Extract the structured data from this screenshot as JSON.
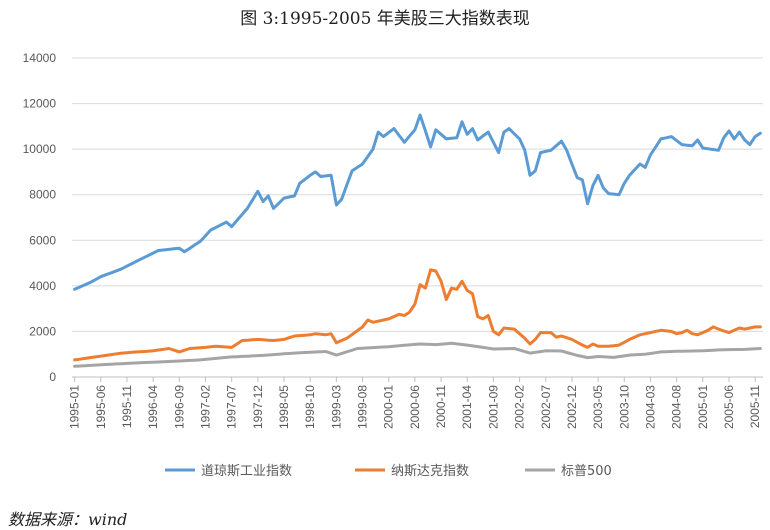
{
  "chart_data": {
    "type": "line",
    "title": "图 3:1995-2005 年美股三大指数表现",
    "xlabel": "",
    "ylabel": "",
    "ylim": [
      0,
      14000
    ],
    "yticks": [
      0,
      2000,
      4000,
      6000,
      8000,
      10000,
      12000,
      14000
    ],
    "ytick_labels": [
      "0",
      "2000",
      "4000",
      "6000",
      "8000",
      "10000",
      "12000",
      "14000"
    ],
    "grid": true,
    "legend_position": "bottom",
    "x_start": "1995-01",
    "x_end": "2005-12",
    "num_points": 132,
    "tick_labels": [
      "1995-01",
      "1995-06",
      "1995-11",
      "1996-04",
      "1996-09",
      "1997-02",
      "1997-07",
      "1997-12",
      "1998-05",
      "1998-10",
      "1999-03",
      "1999-08",
      "2000-01",
      "2000-06",
      "2000-11",
      "2001-04",
      "2001-09",
      "2002-02",
      "2002-07",
      "2002-12",
      "2003-05",
      "2003-10",
      "2004-03",
      "2004-08",
      "2005-01",
      "2005-06",
      "2005-11"
    ],
    "series": [
      {
        "name": "道琼斯工业指数",
        "color": "#5B9BD5",
        "anchors": [
          [
            0,
            3850
          ],
          [
            3,
            4150
          ],
          [
            5,
            4400
          ],
          [
            9,
            4750
          ],
          [
            12,
            5100
          ],
          [
            16,
            5550
          ],
          [
            20,
            5650
          ],
          [
            21,
            5500
          ],
          [
            24,
            5950
          ],
          [
            26,
            6450
          ],
          [
            29,
            6800
          ],
          [
            30,
            6600
          ],
          [
            33,
            7400
          ],
          [
            35,
            8150
          ],
          [
            36,
            7700
          ],
          [
            37,
            7950
          ],
          [
            38,
            7400
          ],
          [
            40,
            7850
          ],
          [
            42,
            7950
          ],
          [
            43,
            8500
          ],
          [
            45,
            8850
          ],
          [
            46,
            9000
          ],
          [
            47,
            8800
          ],
          [
            49,
            8850
          ],
          [
            50,
            7550
          ],
          [
            51,
            7800
          ],
          [
            53,
            9050
          ],
          [
            55,
            9350
          ],
          [
            57,
            10000
          ],
          [
            58,
            10750
          ],
          [
            59,
            10550
          ],
          [
            61,
            10900
          ],
          [
            62,
            10600
          ],
          [
            63,
            10300
          ],
          [
            65,
            10850
          ],
          [
            66,
            11500
          ],
          [
            68,
            10100
          ],
          [
            69,
            10850
          ],
          [
            71,
            10450
          ],
          [
            73,
            10500
          ],
          [
            74,
            11200
          ],
          [
            75,
            10650
          ],
          [
            76,
            10900
          ],
          [
            77,
            10400
          ],
          [
            79,
            10750
          ],
          [
            81,
            9850
          ],
          [
            82,
            10750
          ],
          [
            83,
            10900
          ],
          [
            85,
            10450
          ],
          [
            86,
            9950
          ],
          [
            87,
            8850
          ],
          [
            88,
            9050
          ],
          [
            89,
            9850
          ],
          [
            91,
            9950
          ],
          [
            93,
            10350
          ],
          [
            94,
            9950
          ],
          [
            96,
            8750
          ],
          [
            97,
            8650
          ],
          [
            98,
            7600
          ],
          [
            99,
            8400
          ],
          [
            100,
            8850
          ],
          [
            101,
            8300
          ],
          [
            102,
            8050
          ],
          [
            104,
            8000
          ],
          [
            105,
            8500
          ],
          [
            106,
            8850
          ],
          [
            108,
            9350
          ],
          [
            109,
            9200
          ],
          [
            110,
            9750
          ],
          [
            112,
            10450
          ],
          [
            114,
            10550
          ],
          [
            116,
            10200
          ],
          [
            118,
            10150
          ],
          [
            119,
            10400
          ],
          [
            120,
            10050
          ],
          [
            123,
            9950
          ],
          [
            124,
            10500
          ],
          [
            125,
            10800
          ],
          [
            126,
            10450
          ],
          [
            127,
            10750
          ],
          [
            128,
            10400
          ],
          [
            129,
            10200
          ],
          [
            130,
            10550
          ],
          [
            131,
            10700
          ]
        ]
      },
      {
        "name": "纳斯达克指数",
        "color": "#ED7D31",
        "anchors": [
          [
            0,
            750
          ],
          [
            3,
            850
          ],
          [
            6,
            950
          ],
          [
            9,
            1050
          ],
          [
            12,
            1100
          ],
          [
            15,
            1150
          ],
          [
            18,
            1250
          ],
          [
            20,
            1100
          ],
          [
            22,
            1250
          ],
          [
            25,
            1300
          ],
          [
            27,
            1350
          ],
          [
            30,
            1300
          ],
          [
            31,
            1450
          ],
          [
            32,
            1600
          ],
          [
            35,
            1650
          ],
          [
            38,
            1600
          ],
          [
            40,
            1650
          ],
          [
            42,
            1800
          ],
          [
            45,
            1850
          ],
          [
            46,
            1900
          ],
          [
            48,
            1850
          ],
          [
            49,
            1900
          ],
          [
            50,
            1500
          ],
          [
            52,
            1700
          ],
          [
            55,
            2200
          ],
          [
            56,
            2500
          ],
          [
            57,
            2400
          ],
          [
            60,
            2550
          ],
          [
            62,
            2750
          ],
          [
            63,
            2700
          ],
          [
            64,
            2850
          ],
          [
            65,
            3200
          ],
          [
            66,
            4050
          ],
          [
            67,
            3900
          ],
          [
            68,
            4700
          ],
          [
            69,
            4650
          ],
          [
            70,
            4200
          ],
          [
            71,
            3400
          ],
          [
            72,
            3900
          ],
          [
            73,
            3850
          ],
          [
            74,
            4200
          ],
          [
            75,
            3800
          ],
          [
            76,
            3650
          ],
          [
            77,
            2650
          ],
          [
            78,
            2550
          ],
          [
            79,
            2700
          ],
          [
            80,
            2000
          ],
          [
            81,
            1850
          ],
          [
            82,
            2150
          ],
          [
            84,
            2100
          ],
          [
            86,
            1700
          ],
          [
            87,
            1450
          ],
          [
            88,
            1650
          ],
          [
            89,
            1950
          ],
          [
            91,
            1950
          ],
          [
            92,
            1750
          ],
          [
            93,
            1800
          ],
          [
            95,
            1650
          ],
          [
            97,
            1400
          ],
          [
            98,
            1300
          ],
          [
            99,
            1450
          ],
          [
            100,
            1350
          ],
          [
            102,
            1350
          ],
          [
            104,
            1400
          ],
          [
            106,
            1650
          ],
          [
            108,
            1850
          ],
          [
            110,
            1950
          ],
          [
            112,
            2050
          ],
          [
            114,
            2000
          ],
          [
            115,
            1900
          ],
          [
            116,
            1950
          ],
          [
            117,
            2050
          ],
          [
            118,
            1900
          ],
          [
            119,
            1850
          ],
          [
            120,
            1950
          ],
          [
            121,
            2050
          ],
          [
            122,
            2200
          ],
          [
            123,
            2100
          ],
          [
            125,
            1950
          ],
          [
            126,
            2050
          ],
          [
            127,
            2150
          ],
          [
            128,
            2100
          ],
          [
            130,
            2200
          ],
          [
            131,
            2200
          ]
        ]
      },
      {
        "name": "标普500",
        "color": "#A5A5A5",
        "anchors": [
          [
            0,
            470
          ],
          [
            6,
            550
          ],
          [
            12,
            620
          ],
          [
            18,
            680
          ],
          [
            24,
            750
          ],
          [
            30,
            880
          ],
          [
            36,
            950
          ],
          [
            42,
            1050
          ],
          [
            48,
            1120
          ],
          [
            50,
            960
          ],
          [
            54,
            1250
          ],
          [
            60,
            1330
          ],
          [
            66,
            1450
          ],
          [
            69,
            1420
          ],
          [
            72,
            1480
          ],
          [
            75,
            1400
          ],
          [
            78,
            1300
          ],
          [
            80,
            1230
          ],
          [
            84,
            1250
          ],
          [
            87,
            1050
          ],
          [
            90,
            1150
          ],
          [
            93,
            1140
          ],
          [
            96,
            950
          ],
          [
            98,
            850
          ],
          [
            100,
            900
          ],
          [
            103,
            860
          ],
          [
            106,
            960
          ],
          [
            109,
            1000
          ],
          [
            112,
            1100
          ],
          [
            115,
            1130
          ],
          [
            120,
            1150
          ],
          [
            124,
            1200
          ],
          [
            128,
            1210
          ],
          [
            131,
            1250
          ]
        ]
      }
    ]
  },
  "source_note": "数据来源：wind"
}
